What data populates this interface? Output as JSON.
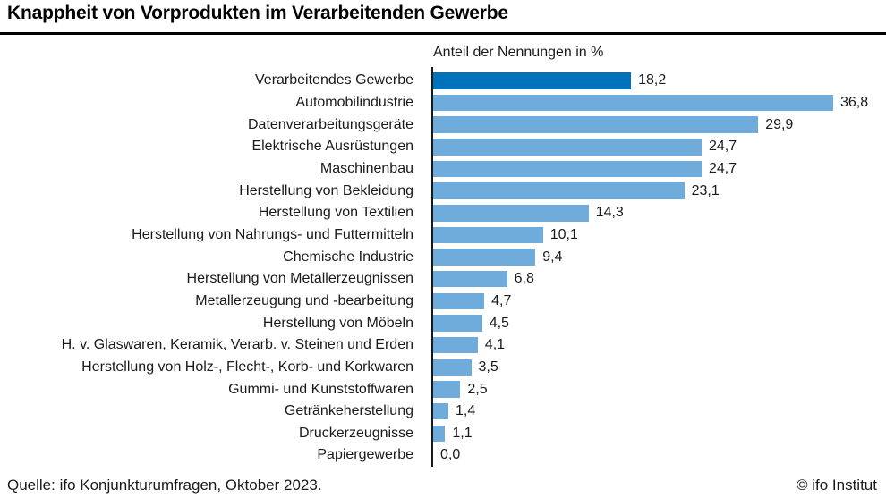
{
  "title": "Knappheit von Vorprodukten im Verarbeitenden Gewerbe",
  "subtitle": "Anteil der Nennungen in %",
  "footer": {
    "source": "Quelle: ifo Konjunkturumfragen, Oktober 2023.",
    "copyright": "© ifo Institut"
  },
  "colors": {
    "highlight_bar": "#0072BC",
    "bar": "#6FACDC",
    "axis": "#1a1a1a",
    "title_rule": "#000000",
    "text": "#1a1a1a"
  },
  "chart_data": {
    "type": "bar",
    "orientation": "horizontal",
    "title": "Knappheit von Vorprodukten im Verarbeitenden Gewerbe",
    "xlabel": "Anteil der Nennungen in %",
    "xlim": [
      0,
      38
    ],
    "grid": false,
    "legend": false,
    "highlighted_index": 0,
    "categories": [
      "Verarbeitendes Gewerbe",
      "Automobilindustrie",
      "Datenverarbeitungsgeräte",
      "Elektrische Ausrüstungen",
      "Maschinenbau",
      "Herstellung von Bekleidung",
      "Herstellung von Textilien",
      "Herstellung von Nahrungs- und Futtermitteln",
      "Chemische Industrie",
      "Herstellung von Metallerzeugnissen",
      "Metallerzeugung und -bearbeitung",
      "Herstellung von Möbeln",
      "H. v. Glaswaren, Keramik, Verarb. v. Steinen und Erden",
      "Herstellung von Holz-, Flecht-, Korb- und Korkwaren",
      "Gummi- und Kunststoffwaren",
      "Getränkeherstellung",
      "Druckerzeugnisse",
      "Papiergewerbe"
    ],
    "values": [
      18.2,
      36.8,
      29.9,
      24.7,
      24.7,
      23.1,
      14.3,
      10.1,
      9.4,
      6.8,
      4.7,
      4.5,
      4.1,
      3.5,
      2.5,
      1.4,
      1.1,
      0.0
    ],
    "value_labels": [
      "18,2",
      "36,8",
      "29,9",
      "24,7",
      "24,7",
      "23,1",
      "14,3",
      "10,1",
      "9,4",
      "6,8",
      "4,7",
      "4,5",
      "4,1",
      "3,5",
      "2,5",
      "1,4",
      "1,1",
      "0,0"
    ]
  }
}
